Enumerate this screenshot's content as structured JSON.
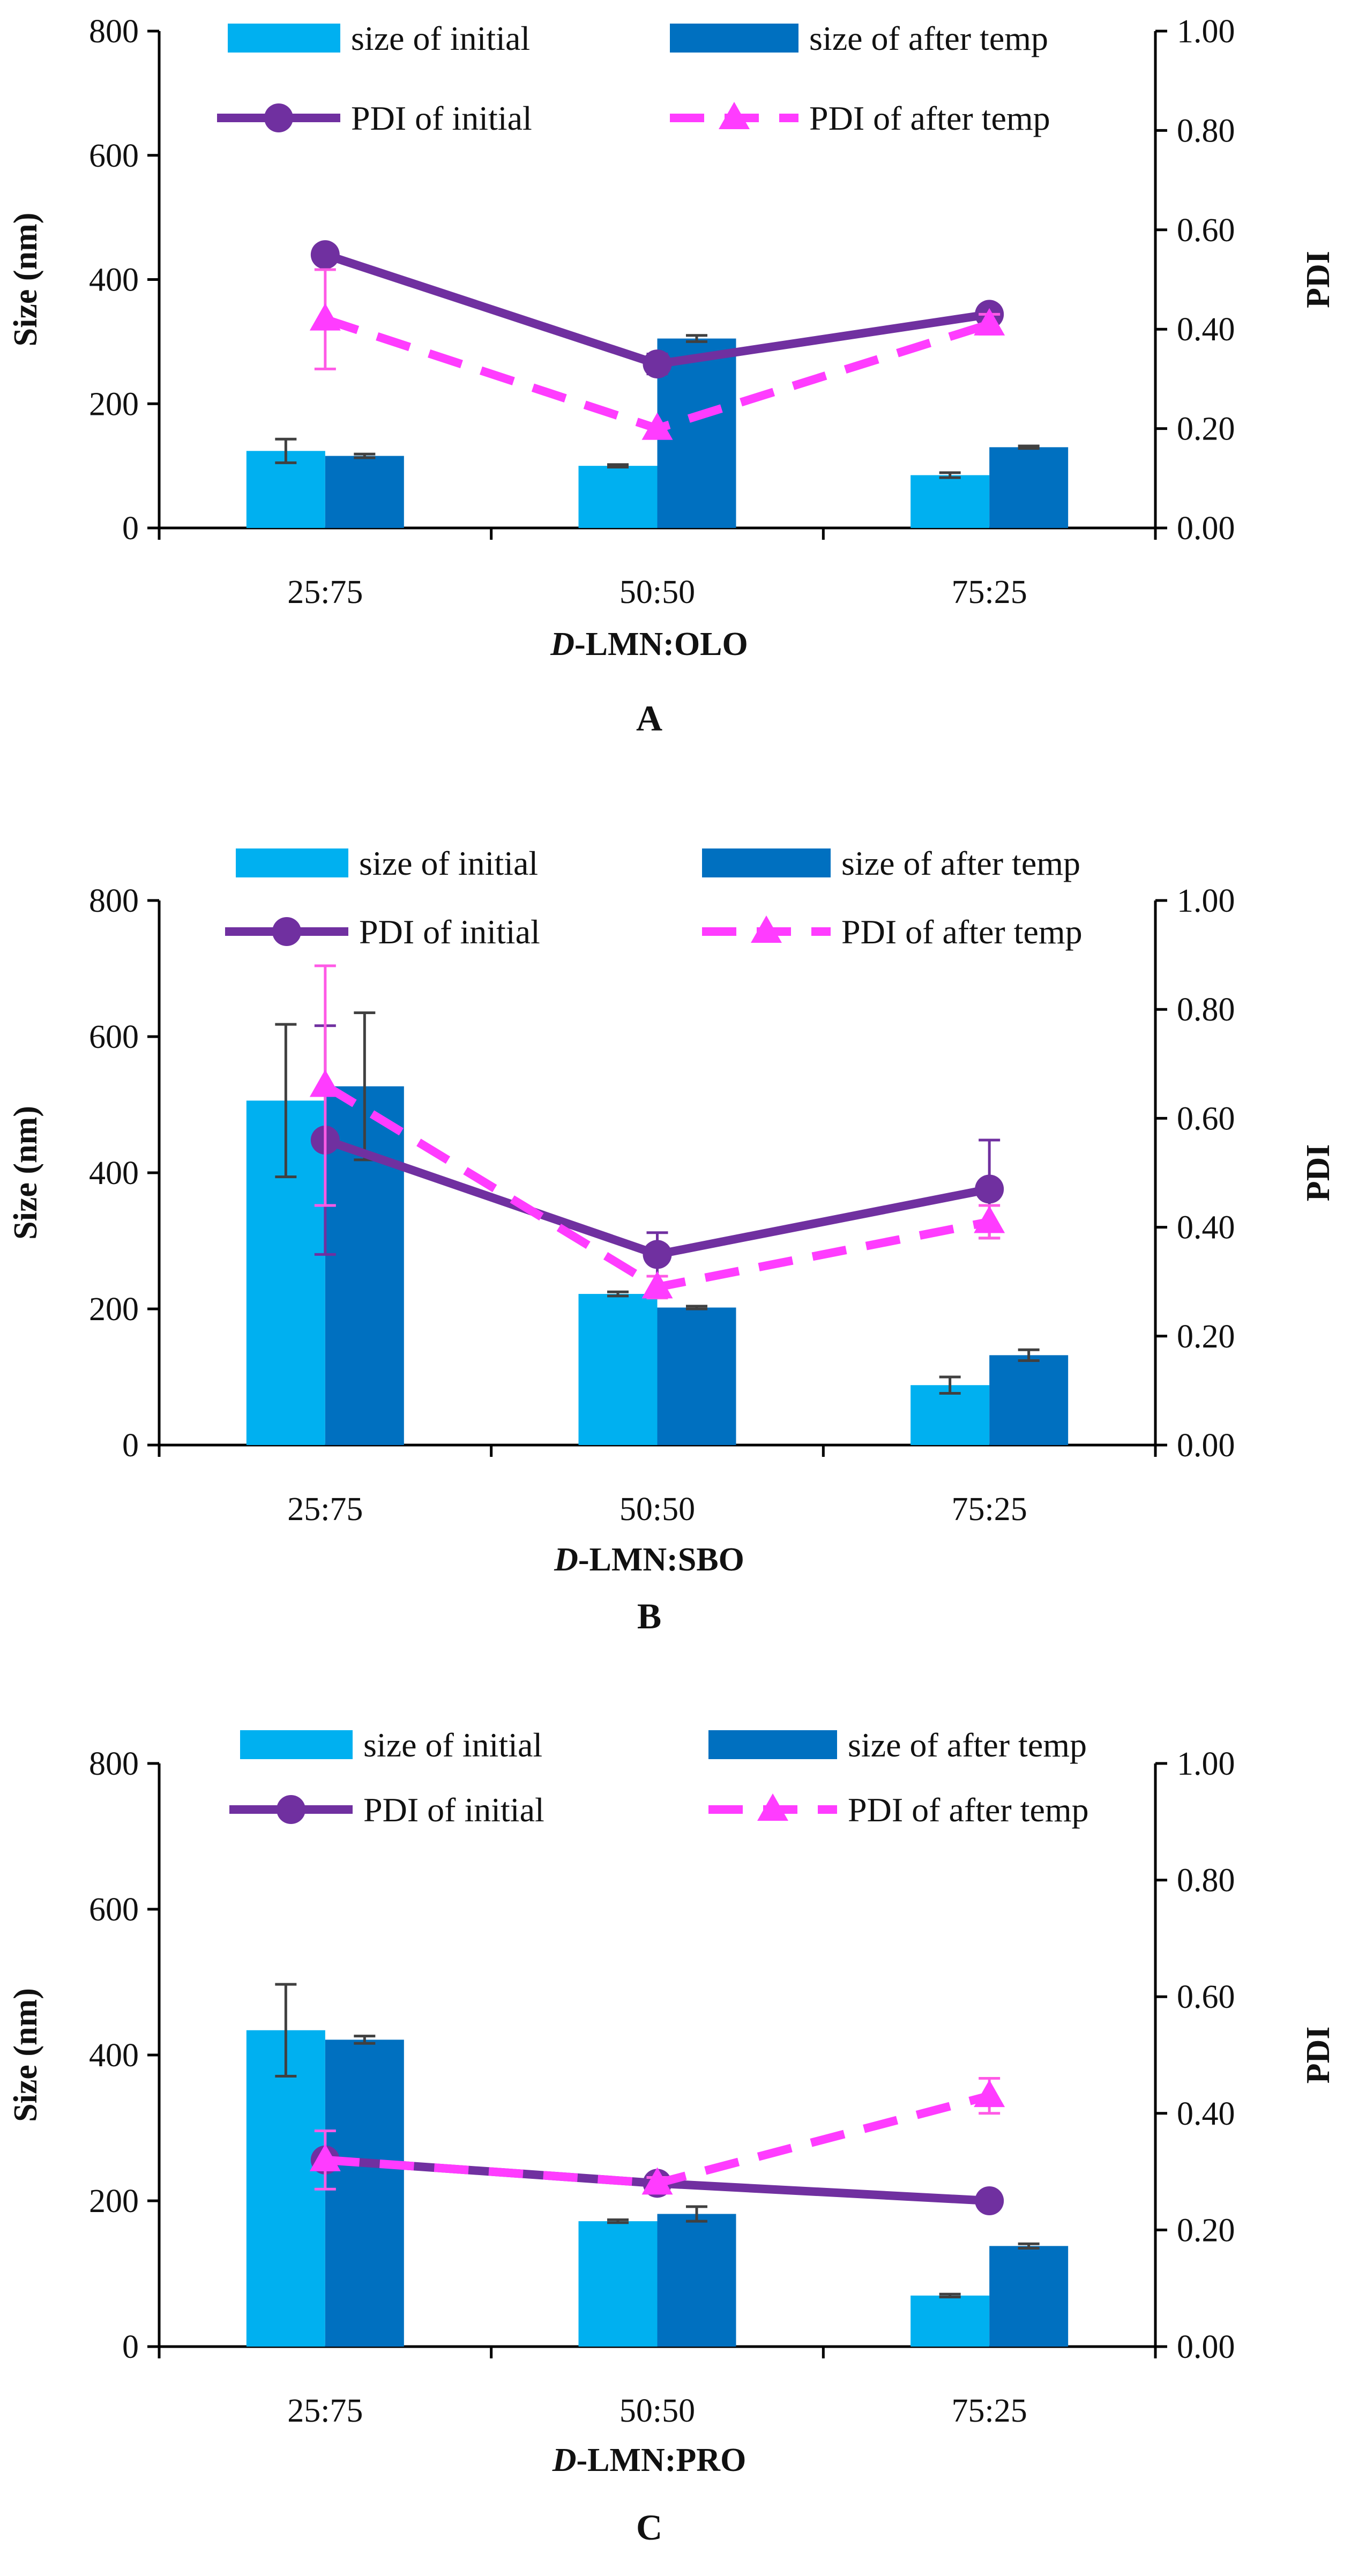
{
  "figure": {
    "panel_labels": [
      "A",
      "B",
      "C"
    ]
  },
  "colors": {
    "bar_initial": "#00B0F0",
    "bar_after": "#0070C0",
    "pdi_initial": "#7030A0",
    "pdi_after": "#FF3CFF",
    "err_size": "#404040",
    "err_pdi_initial": "#7030A0",
    "err_pdi_after": "#FF5AE6"
  },
  "chart_data": [
    {
      "type": "bar",
      "panel": "A",
      "title": "",
      "categories": [
        "25:75",
        "50:50",
        "75:25"
      ],
      "xlabel": {
        "prefix": "D",
        "suffix": "-LMN:OLO"
      },
      "ylabel": "Size (nm)",
      "y2label": "PDI",
      "ylim": [
        0,
        800
      ],
      "yticks": [
        "0",
        "200",
        "400",
        "600",
        "800"
      ],
      "y2lim": [
        0,
        1
      ],
      "y2ticks": [
        "0.00",
        "0.20",
        "0.40",
        "0.60",
        "0.80",
        "1.00"
      ],
      "legend": [
        "size of initial",
        "size of after temp",
        "PDI of initial",
        "PDI of after temp"
      ],
      "series": [
        {
          "name": "size of initial",
          "kind": "bar",
          "axis": "left",
          "values": [
            124,
            100,
            85
          ],
          "errors": [
            19,
            2,
            4
          ]
        },
        {
          "name": "size of after temp",
          "kind": "bar",
          "axis": "left",
          "values": [
            116,
            305,
            130
          ],
          "errors": [
            3,
            5,
            2
          ]
        },
        {
          "name": "PDI of initial",
          "kind": "line",
          "axis": "right",
          "marker": "circle",
          "values": [
            0.55,
            0.33,
            0.43
          ],
          "errors": [
            0.0,
            0.02,
            0.01
          ]
        },
        {
          "name": "PDI of after temp",
          "kind": "line",
          "axis": "right",
          "marker": "triangle",
          "dashed": true,
          "values": [
            0.42,
            0.2,
            0.41
          ],
          "errors": [
            0.1,
            0.01,
            0.02
          ]
        }
      ]
    },
    {
      "type": "bar",
      "panel": "B",
      "title": "",
      "categories": [
        "25:75",
        "50:50",
        "75:25"
      ],
      "xlabel": {
        "prefix": "D",
        "suffix": "-LMN:SBO"
      },
      "ylabel": "Size (nm)",
      "y2label": "PDI",
      "ylim": [
        0,
        800
      ],
      "yticks": [
        "0",
        "200",
        "400",
        "600",
        "800"
      ],
      "y2lim": [
        0,
        1
      ],
      "y2ticks": [
        "0.00",
        "0.20",
        "0.40",
        "0.60",
        "0.80",
        "1.00"
      ],
      "legend": [
        "size of initial",
        "size of after temp",
        "PDI of initial",
        "PDI of after temp"
      ],
      "series": [
        {
          "name": "size of initial",
          "kind": "bar",
          "axis": "left",
          "values": [
            506,
            222,
            88
          ],
          "errors": [
            112,
            3,
            12
          ]
        },
        {
          "name": "size of after temp",
          "kind": "bar",
          "axis": "left",
          "values": [
            527,
            202,
            132
          ],
          "errors": [
            108,
            2,
            8
          ]
        },
        {
          "name": "PDI of initial",
          "kind": "line",
          "axis": "right",
          "marker": "circle",
          "values": [
            0.56,
            0.35,
            0.47
          ],
          "errors": [
            0.21,
            0.04,
            0.09
          ]
        },
        {
          "name": "PDI of after temp",
          "kind": "line",
          "axis": "right",
          "marker": "triangle",
          "dashed": true,
          "values": [
            0.66,
            0.29,
            0.41
          ],
          "errors": [
            0.22,
            0.02,
            0.03
          ]
        }
      ]
    },
    {
      "type": "bar",
      "panel": "C",
      "title": "",
      "categories": [
        "25:75",
        "50:50",
        "75:25"
      ],
      "xlabel": {
        "prefix": "D",
        "suffix": "-LMN:PRO"
      },
      "ylabel": "Size (nm)",
      "y2label": "PDI",
      "ylim": [
        0,
        800
      ],
      "yticks": [
        "0",
        "200",
        "400",
        "600",
        "800"
      ],
      "y2lim": [
        0,
        1
      ],
      "y2ticks": [
        "0.00",
        "0.20",
        "0.40",
        "0.60",
        "0.80",
        "1.00"
      ],
      "legend": [
        "size of initial",
        "size of after temp",
        "PDI of initial",
        "PDI of after temp"
      ],
      "series": [
        {
          "name": "size of initial",
          "kind": "bar",
          "axis": "left",
          "values": [
            434,
            172,
            70
          ],
          "errors": [
            63,
            2,
            2
          ]
        },
        {
          "name": "size of after temp",
          "kind": "bar",
          "axis": "left",
          "values": [
            421,
            182,
            138
          ],
          "errors": [
            5,
            10,
            3
          ]
        },
        {
          "name": "PDI of initial",
          "kind": "line",
          "axis": "right",
          "marker": "circle",
          "values": [
            0.32,
            0.28,
            0.25
          ],
          "errors": [
            0.0,
            0.0,
            0.0
          ]
        },
        {
          "name": "PDI of after temp",
          "kind": "line",
          "axis": "right",
          "marker": "triangle",
          "dashed": true,
          "values": [
            0.32,
            0.28,
            0.43
          ],
          "errors": [
            0.05,
            0.01,
            0.03
          ]
        }
      ]
    }
  ]
}
